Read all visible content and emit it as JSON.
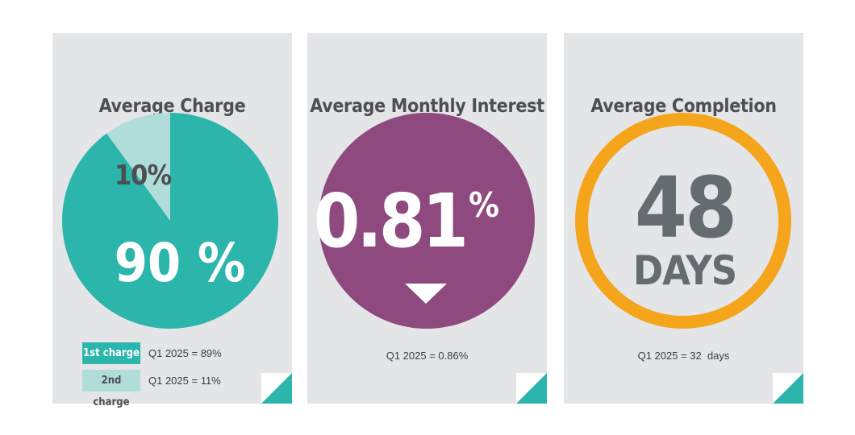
{
  "chart_data": [
    {
      "type": "pie",
      "title": "Average Charge",
      "slices": [
        {
          "label": "1st charge",
          "value": 90,
          "display": "90 %",
          "color": "#2bb5ab"
        },
        {
          "label": "2nd charge",
          "value": 10,
          "display": "10%",
          "color": "#b0ddd9"
        }
      ],
      "legend": [
        {
          "label": "1st charge",
          "note": "Q1 2025 = 89%",
          "color": "#2bb5ab"
        },
        {
          "label": "2nd charge",
          "note": "Q1 2025 = 11%",
          "color": "#b0ddd9"
        }
      ]
    },
    {
      "type": "kpi",
      "title": "Average Monthly Interest Rate",
      "value": "0.81",
      "unit": "%",
      "trend": "down",
      "note": "Q1 2025 = 0.86%",
      "color": "#8e497e"
    },
    {
      "type": "kpi",
      "title": "Average Completion",
      "value": "48",
      "unit": "DAYS",
      "note": "Q1 2025 = 32  days",
      "color": "#f5a51c"
    }
  ],
  "colors": {
    "card_bg": "#e4e5e7",
    "title_text": "#4d4f52",
    "fold": "#2bb5ab",
    "kpi_number": "#646c6f"
  }
}
